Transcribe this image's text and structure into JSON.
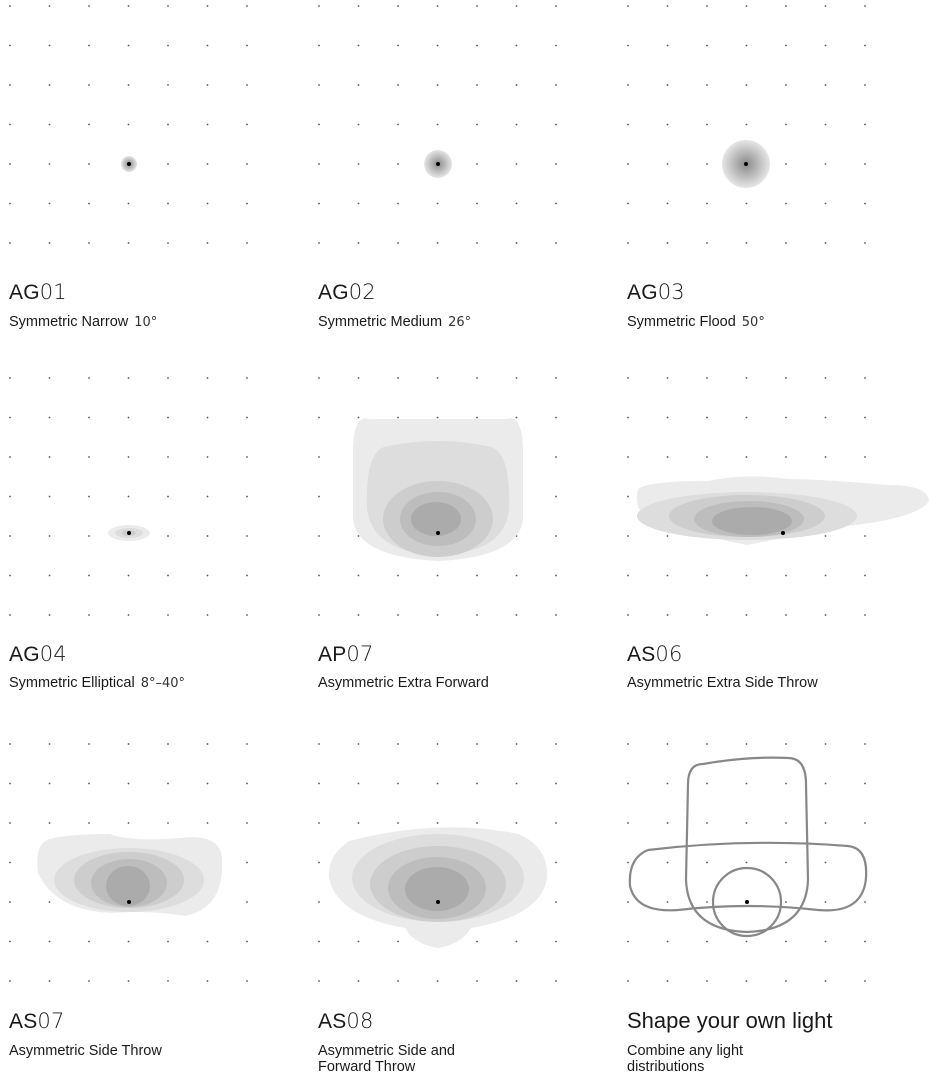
{
  "items": [
    {
      "code_prefix": "AG",
      "code_num": "01",
      "description": "Symmetric Narrow",
      "angle": "10°",
      "shape": "narrow"
    },
    {
      "code_prefix": "AG",
      "code_num": "02",
      "description": "Symmetric Medium",
      "angle": "26°",
      "shape": "medium"
    },
    {
      "code_prefix": "AG",
      "code_num": "03",
      "description": "Symmetric Flood",
      "angle": "50°",
      "shape": "flood"
    },
    {
      "code_prefix": "AG",
      "code_num": "04",
      "description": "Symmetric Elliptical",
      "angle": "8°–40°",
      "shape": "elliptical"
    },
    {
      "code_prefix": "AP",
      "code_num": "07",
      "description": "Asymmetric Extra Forward",
      "angle": "",
      "shape": "extra-forward"
    },
    {
      "code_prefix": "AS",
      "code_num": "06",
      "description": "Asymmetric Extra Side Throw",
      "angle": "",
      "shape": "extra-side"
    },
    {
      "code_prefix": "AS",
      "code_num": "07",
      "description": "Asymmetric Side Throw",
      "angle": "",
      "shape": "side-throw"
    },
    {
      "code_prefix": "AS",
      "code_num": "08",
      "description": "Asymmetric Side and Forward Throw",
      "angle": "",
      "shape": "side-forward"
    }
  ],
  "custom": {
    "title": "Shape your own light",
    "description": "Combine any light distributions"
  },
  "colors": {
    "text": "#1a1a1a",
    "grid_dot": "#555555",
    "outline": "#888888",
    "center_dot": "#000000"
  }
}
